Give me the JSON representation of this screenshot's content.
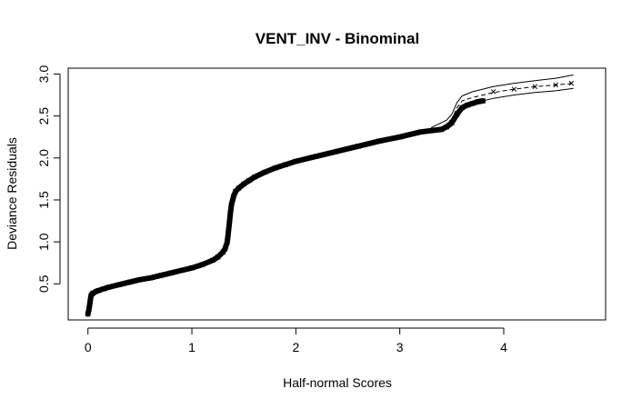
{
  "chart_data": {
    "type": "scatter",
    "title": "VENT_INV - Binominal",
    "xlabel": "Half-normal Scores",
    "ylabel": "Deviance Residuals",
    "xlim": [
      -0.19,
      4.98
    ],
    "ylim": [
      0.07,
      3.07
    ],
    "xticks": [
      0,
      1,
      2,
      3,
      4
    ],
    "yticks": [
      0.5,
      1.0,
      1.5,
      2.0,
      2.5,
      3.0
    ],
    "xtick_labels": [
      "0",
      "1",
      "2",
      "3",
      "4"
    ],
    "ytick_labels": [
      "0.5",
      "1.0",
      "1.5",
      "2.0",
      "2.5",
      "3.0"
    ],
    "grid": false,
    "legend": "none",
    "series": [
      {
        "role": "observed-residuals",
        "marker": "x",
        "color": "#000000",
        "x": [
          0.0,
          0.01,
          0.02,
          0.03,
          0.04,
          0.05,
          0.08,
          0.1,
          0.15,
          0.2,
          0.3,
          0.4,
          0.5,
          0.6,
          0.7,
          0.8,
          0.9,
          1.0,
          1.1,
          1.2,
          1.25,
          1.3,
          1.32,
          1.34,
          1.35,
          1.36,
          1.37,
          1.38,
          1.4,
          1.42,
          1.45,
          1.5,
          1.55,
          1.6,
          1.7,
          1.8,
          1.9,
          2.0,
          2.2,
          2.4,
          2.6,
          2.8,
          3.0,
          3.2,
          3.4,
          3.45,
          3.5,
          3.55,
          3.6,
          3.65,
          3.7,
          3.75,
          3.8
        ],
        "y": [
          0.14,
          0.2,
          0.28,
          0.36,
          0.38,
          0.39,
          0.41,
          0.42,
          0.44,
          0.46,
          0.49,
          0.52,
          0.55,
          0.57,
          0.6,
          0.63,
          0.66,
          0.69,
          0.73,
          0.78,
          0.82,
          0.88,
          0.92,
          1.0,
          1.1,
          1.22,
          1.34,
          1.44,
          1.54,
          1.6,
          1.64,
          1.69,
          1.73,
          1.77,
          1.83,
          1.88,
          1.92,
          1.96,
          2.02,
          2.08,
          2.14,
          2.2,
          2.25,
          2.31,
          2.34,
          2.37,
          2.42,
          2.52,
          2.6,
          2.63,
          2.65,
          2.67,
          2.68
        ]
      },
      {
        "role": "simulated-points",
        "marker": "x",
        "color": "#000000",
        "x": [
          3.9,
          4.1,
          4.3,
          4.5,
          4.65
        ],
        "y": [
          2.79,
          2.82,
          2.85,
          2.87,
          2.89
        ]
      },
      {
        "role": "envelope-median",
        "line": "dashed",
        "color": "#000000",
        "x": [
          3.3,
          3.45,
          3.5,
          3.55,
          3.6,
          3.7,
          3.9,
          4.1,
          4.3,
          4.5,
          4.67
        ],
        "y": [
          2.33,
          2.39,
          2.45,
          2.6,
          2.68,
          2.72,
          2.78,
          2.82,
          2.85,
          2.87,
          2.89
        ]
      },
      {
        "role": "envelope-upper",
        "line": "solid",
        "color": "#000000",
        "x": [
          3.3,
          3.45,
          3.5,
          3.55,
          3.6,
          3.7,
          3.9,
          4.1,
          4.3,
          4.5,
          4.67
        ],
        "y": [
          2.36,
          2.45,
          2.52,
          2.66,
          2.74,
          2.79,
          2.85,
          2.89,
          2.92,
          2.95,
          2.99
        ]
      },
      {
        "role": "envelope-lower",
        "line": "solid",
        "color": "#000000",
        "x": [
          3.3,
          3.45,
          3.5,
          3.55,
          3.6,
          3.7,
          3.9,
          4.1,
          4.3,
          4.5,
          4.67
        ],
        "y": [
          2.3,
          2.34,
          2.38,
          2.5,
          2.59,
          2.65,
          2.71,
          2.75,
          2.78,
          2.8,
          2.83
        ]
      }
    ]
  }
}
